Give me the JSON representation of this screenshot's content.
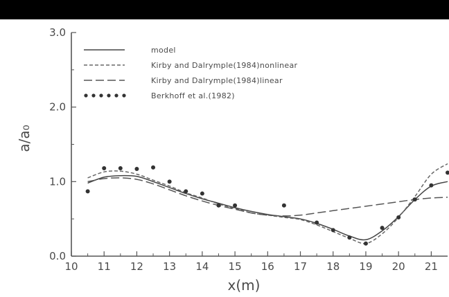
{
  "chart_data": {
    "type": "line",
    "title": "",
    "xlabel": "x(m)",
    "ylabel": "a/a₀",
    "xlim": [
      10,
      21.5
    ],
    "ylim": [
      0,
      3
    ],
    "x_ticks": [
      "10",
      "11",
      "12",
      "13",
      "14",
      "15",
      "16",
      "17",
      "18",
      "19",
      "20",
      "21"
    ],
    "y_ticks": [
      "0.0",
      "1.0",
      "2.0",
      "3.0"
    ],
    "grid": false,
    "legend_position": "top-left",
    "series": [
      {
        "name": "model",
        "style": "solid",
        "color": "#444444",
        "x": [
          10.5,
          11.0,
          11.5,
          12.0,
          12.5,
          13.0,
          13.5,
          14.0,
          14.5,
          15.0,
          15.5,
          16.0,
          16.5,
          17.0,
          17.5,
          18.0,
          18.5,
          19.0,
          19.5,
          20.0,
          20.5,
          21.0,
          21.5
        ],
        "y": [
          0.98,
          1.06,
          1.08,
          1.07,
          1.0,
          0.92,
          0.84,
          0.77,
          0.71,
          0.65,
          0.6,
          0.56,
          0.53,
          0.5,
          0.44,
          0.36,
          0.27,
          0.22,
          0.34,
          0.53,
          0.76,
          0.94,
          1.0
        ]
      },
      {
        "name": "Kirby and Dalrymple(1984)nonlinear",
        "style": "dashed",
        "color": "#666666",
        "x": [
          10.5,
          11.0,
          11.5,
          12.0,
          12.5,
          13.0,
          13.5,
          14.0,
          14.5,
          15.0,
          15.5,
          16.0,
          16.5,
          17.0,
          17.5,
          18.0,
          18.5,
          19.0,
          19.5,
          20.0,
          20.5,
          21.0,
          21.5
        ],
        "y": [
          1.05,
          1.13,
          1.14,
          1.1,
          1.02,
          0.94,
          0.85,
          0.78,
          0.7,
          0.64,
          0.58,
          0.55,
          0.52,
          0.49,
          0.42,
          0.33,
          0.24,
          0.17,
          0.3,
          0.52,
          0.8,
          1.1,
          1.24
        ]
      },
      {
        "name": "Kirby and Dalrymple(1984)linear",
        "style": "long-dash",
        "color": "#555555",
        "x": [
          10.5,
          11.0,
          11.5,
          12.0,
          12.5,
          13.0,
          13.5,
          14.0,
          14.5,
          15.0,
          15.5,
          16.0,
          16.5,
          17.0,
          17.5,
          18.0,
          18.5,
          19.0,
          19.5,
          20.0,
          20.5,
          21.0,
          21.5
        ],
        "y": [
          1.0,
          1.04,
          1.05,
          1.03,
          0.97,
          0.89,
          0.81,
          0.74,
          0.68,
          0.63,
          0.58,
          0.55,
          0.54,
          0.55,
          0.58,
          0.61,
          0.64,
          0.67,
          0.7,
          0.73,
          0.76,
          0.78,
          0.79
        ]
      },
      {
        "name": "Berkhoff et al.(1982)",
        "style": "markers",
        "color": "#333333",
        "x": [
          10.5,
          11.0,
          11.5,
          12.0,
          12.5,
          13.0,
          13.5,
          14.0,
          14.5,
          15.0,
          16.5,
          17.5,
          18.0,
          18.5,
          19.0,
          19.5,
          20.0,
          20.5,
          21.0,
          21.5
        ],
        "y": [
          0.87,
          1.18,
          1.18,
          1.17,
          1.19,
          1.0,
          0.87,
          0.84,
          0.68,
          0.68,
          0.68,
          0.45,
          0.35,
          0.25,
          0.17,
          0.38,
          0.52,
          0.76,
          0.95,
          1.12
        ]
      }
    ]
  }
}
